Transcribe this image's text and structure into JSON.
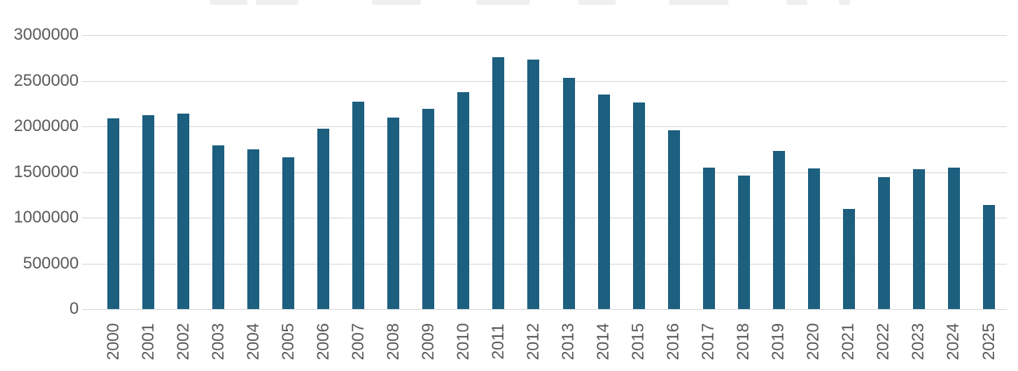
{
  "chart_data": {
    "type": "bar",
    "title": "",
    "categories": [
      "2000",
      "2001",
      "2002",
      "2003",
      "2004",
      "2005",
      "2006",
      "2007",
      "2008",
      "2009",
      "2010",
      "2011",
      "2012",
      "2013",
      "2014",
      "2015",
      "2016",
      "2017",
      "2018",
      "2019",
      "2020",
      "2021",
      "2022",
      "2023",
      "2024",
      "2025"
    ],
    "values": [
      2090000,
      2120000,
      2140000,
      1790000,
      1750000,
      1660000,
      1970000,
      2270000,
      2100000,
      2190000,
      2370000,
      2760000,
      2730000,
      2530000,
      2350000,
      2260000,
      1960000,
      1550000,
      1460000,
      1730000,
      1540000,
      1100000,
      1440000,
      1530000,
      1550000,
      1140000
    ],
    "xlabel": "",
    "ylabel": "",
    "ylim": [
      0,
      3000000
    ],
    "ytick_step": 500000,
    "yticks": [
      0,
      500000,
      1000000,
      1500000,
      2000000,
      2500000,
      3000000
    ],
    "ytick_labels": [
      "0",
      "500000",
      "1000000",
      "1500000",
      "2000000",
      "2500000",
      "3000000"
    ],
    "grid": true,
    "legend": "none",
    "x_labels_rotation_degrees": 90,
    "colors": {
      "bar": "#1d5f7f",
      "gridline": "#d9d9d9",
      "axis_text": "#595959",
      "background": "#ffffff"
    }
  }
}
